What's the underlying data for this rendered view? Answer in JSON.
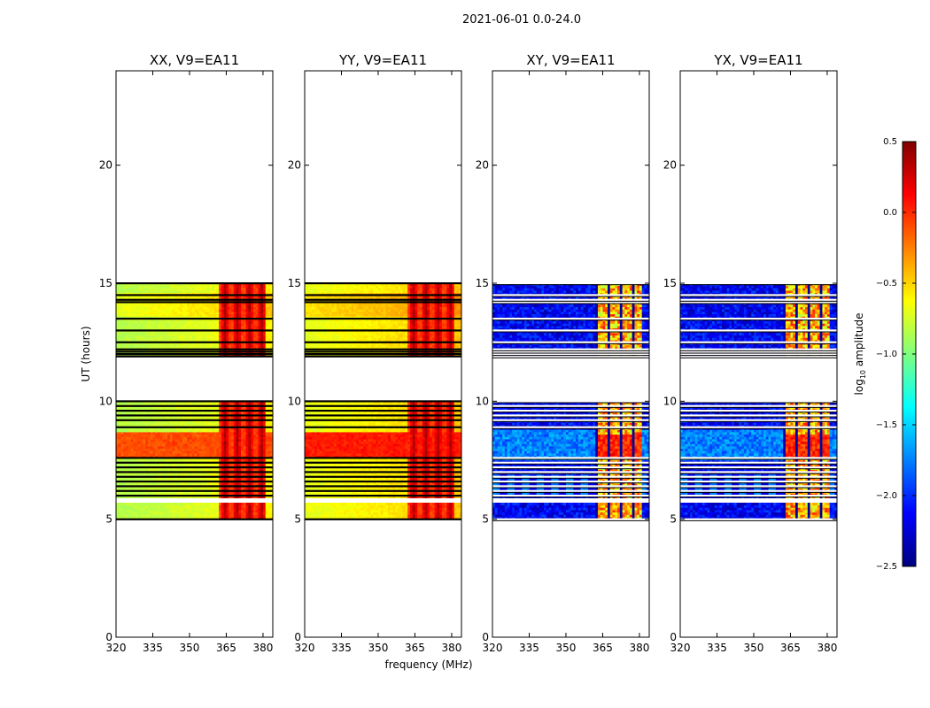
{
  "chart_data": {
    "type": "heatmap",
    "suptitle": "2021-06-01 0.0-24.0",
    "xlabel": "frequency (MHz)",
    "ylabel": "UT (hours)",
    "xlim": [
      320,
      384
    ],
    "ylim": [
      0,
      24
    ],
    "xticks": [
      320,
      335,
      350,
      365,
      380
    ],
    "yticks": [
      0,
      5,
      10,
      15,
      20
    ],
    "panels": [
      {
        "title": "XX, V9=EA11",
        "pol": "XX"
      },
      {
        "title": "YY, V9=EA11",
        "pol": "YY"
      },
      {
        "title": "XY, V9=EA11",
        "pol": "XY"
      },
      {
        "title": "YX, V9=EA11",
        "pol": "YX"
      }
    ],
    "data_ut_ranges": [
      [
        5.0,
        10.0
      ],
      [
        11.9,
        15.0
      ]
    ],
    "gap_ut_ranges": [
      [
        5.65,
        5.9
      ]
    ],
    "flagged_ut_hours": [
      5.0,
      6.0,
      6.2,
      6.4,
      6.6,
      6.8,
      7.0,
      7.2,
      7.4,
      7.6,
      8.9,
      9.2,
      9.4,
      9.6,
      9.8,
      10.0,
      11.9,
      12.0,
      12.1,
      12.2,
      12.5,
      13.0,
      13.5,
      14.2,
      14.3,
      14.5,
      15.0
    ],
    "rfi_channels_mhz": [
      364,
      369,
      374,
      379
    ],
    "colorbar": {
      "label_pre": "log",
      "label_sub": "10",
      "label_post": " amplitude",
      "range": [
        -2.5,
        0.5
      ],
      "ticks": [
        "0.5",
        "0.0",
        "−0.5",
        "−1.0",
        "−1.5",
        "−2.0",
        "−2.5"
      ],
      "tick_values": [
        0.5,
        0.0,
        -0.5,
        -1.0,
        -1.5,
        -2.0,
        -2.5
      ],
      "colormap": "jet"
    },
    "levels": {
      "parallel_base": -0.85,
      "parallel_band_8h": -0.15,
      "parallel_rfi": 0.3,
      "cross_base": -2.15,
      "cross_band_8h": -1.75,
      "cross_rfi": -0.4
    }
  }
}
